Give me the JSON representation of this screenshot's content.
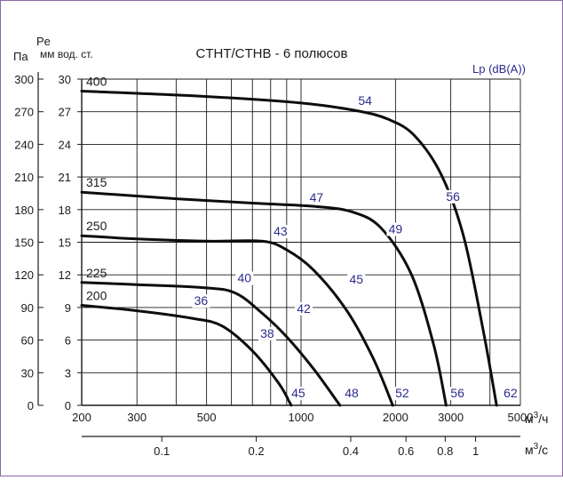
{
  "chart_data": {
    "type": "line",
    "title": "CTHT/CTHB - 6 полюсов",
    "left_axis": {
      "header": "Па",
      "ticks": [
        0,
        30,
        60,
        90,
        120,
        150,
        180,
        210,
        240,
        270,
        300
      ]
    },
    "inner_axis": {
      "symbol": "Pe",
      "header": "мм вод. ст.",
      "ticks": [
        0,
        3,
        6,
        9,
        12,
        15,
        18,
        21,
        24,
        27,
        30
      ]
    },
    "x_axis": {
      "scale": "log",
      "range": [
        200,
        5000
      ],
      "unit_base": "м",
      "unit_exp": "3",
      "unit_suffix": "/ч",
      "tick_labels": [
        "200",
        "300",
        "500",
        "1000",
        "2000",
        "3000",
        "5000"
      ],
      "tick_values": [
        200,
        300,
        500,
        1000,
        2000,
        3000,
        5000
      ]
    },
    "x2_axis": {
      "unit_base": "м",
      "unit_exp": "3",
      "unit_suffix": "/с",
      "tick_labels": [
        "0.1",
        "0.2",
        "0.4",
        "0.6",
        "0.8",
        "1"
      ],
      "tick_values": [
        0.1,
        0.2,
        0.4,
        0.6,
        0.8,
        1
      ]
    },
    "noise_label": "Lp (dB(A))",
    "ylim": [
      0,
      300
    ],
    "grid": true,
    "series": [
      {
        "name": "200",
        "x": [
          200,
          300,
          450,
          560,
          700,
          850,
          930
        ],
        "y": [
          92,
          87,
          80,
          73,
          50,
          20,
          0
        ]
      },
      {
        "name": "225",
        "x": [
          200,
          300,
          500,
          620,
          750,
          900,
          1100,
          1330
        ],
        "y": [
          113,
          111,
          108,
          103,
          85,
          63,
          33,
          0
        ]
      },
      {
        "name": "250",
        "x": [
          200,
          300,
          500,
          750,
          900,
          1100,
          1400,
          1700,
          1960
        ],
        "y": [
          156,
          153,
          151,
          151,
          143,
          124,
          87,
          43,
          0
        ]
      },
      {
        "name": "315",
        "x": [
          200,
          400,
          700,
          1100,
          1450,
          1800,
          2250,
          2650,
          2900
        ],
        "y": [
          196,
          190,
          186,
          183,
          178,
          163,
          120,
          55,
          0
        ]
      },
      {
        "name": "400",
        "x": [
          200,
          500,
          1000,
          1500,
          1900,
          2300,
          2800,
          3300,
          3800,
          4200
        ],
        "y": [
          289,
          284,
          278,
          271,
          263,
          248,
          212,
          155,
          70,
          0
        ]
      }
    ],
    "noise_labels": [
      {
        "text": "54",
        "x": 1600,
        "y": 277
      },
      {
        "text": "56",
        "x": 3050,
        "y": 189
      },
      {
        "text": "47",
        "x": 1120,
        "y": 188
      },
      {
        "text": "49",
        "x": 2000,
        "y": 159
      },
      {
        "text": "43",
        "x": 860,
        "y": 157
      },
      {
        "text": "45",
        "x": 1500,
        "y": 113
      },
      {
        "text": "40",
        "x": 660,
        "y": 114
      },
      {
        "text": "42",
        "x": 1020,
        "y": 86
      },
      {
        "text": "36",
        "x": 480,
        "y": 93
      },
      {
        "text": "38",
        "x": 780,
        "y": 63
      },
      {
        "text": "45",
        "x": 980,
        "y": 8
      },
      {
        "text": "48",
        "x": 1450,
        "y": 8
      },
      {
        "text": "52",
        "x": 2100,
        "y": 8
      },
      {
        "text": "56",
        "x": 3150,
        "y": 8
      },
      {
        "text": "62",
        "x": 4650,
        "y": 8
      }
    ]
  },
  "colors": {
    "curve": "#0d0d0d",
    "grid": "#1a1a1a",
    "text": "#1a1a1a",
    "noise": "#2b2b8c",
    "frame": "#8a6aa8"
  }
}
